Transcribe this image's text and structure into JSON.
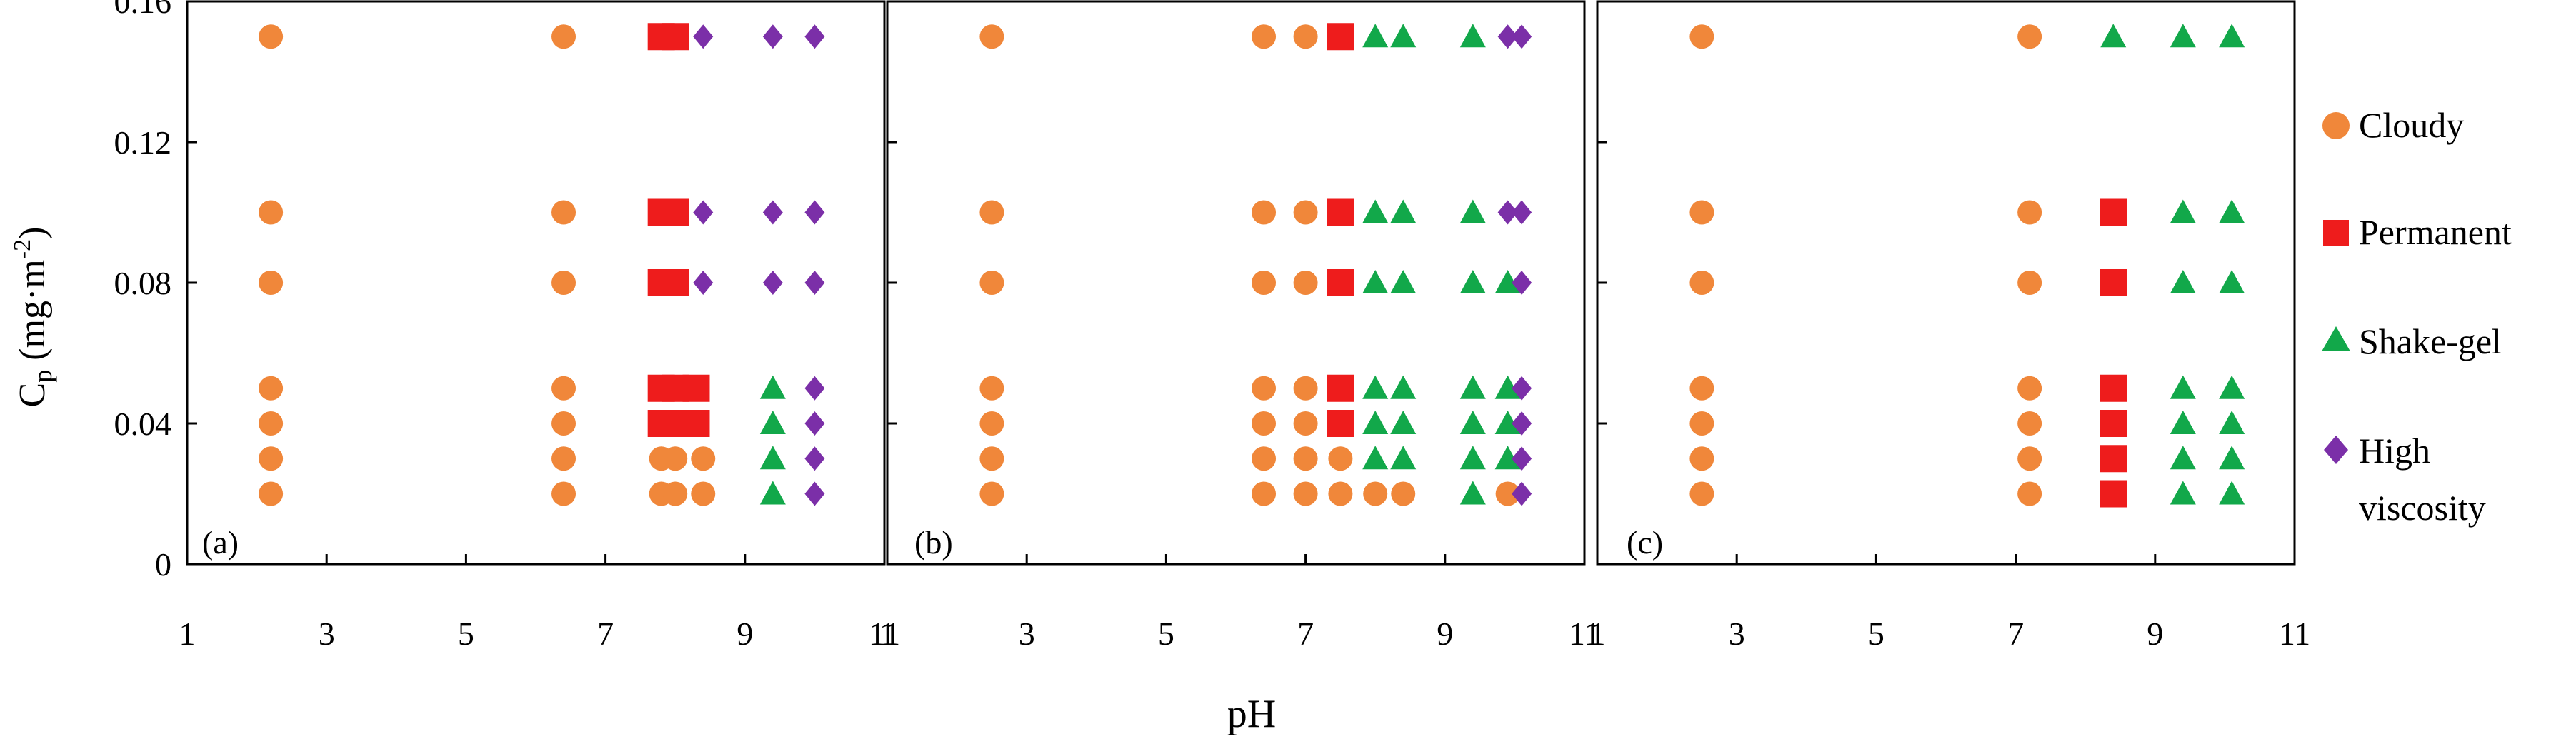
{
  "chart_data": {
    "type": "scatter",
    "x_axis": {
      "label": "pH",
      "range": [
        1,
        11
      ],
      "ticks": [
        1,
        3,
        5,
        7,
        9,
        11
      ],
      "tick_labels": [
        "1",
        "3",
        "5",
        "7",
        "9",
        "11"
      ]
    },
    "y_axis": {
      "label_main": "C",
      "label_sub": "p",
      "label_rest": " (mg·m",
      "label_sup": "-2",
      "label_end": ")",
      "range": [
        0,
        0.16
      ],
      "ticks": [
        0,
        0.04,
        0.08,
        0.12,
        0.16
      ],
      "tick_labels": [
        "0",
        "0.04",
        "0.08",
        "0.12",
        "0.16"
      ]
    },
    "legend": [
      {
        "key": "cloudy",
        "label": "Cloudy",
        "marker": "circle",
        "color": "#F0873A"
      },
      {
        "key": "permanent",
        "label": "Permanent",
        "marker": "square",
        "color": "#EE1C1C"
      },
      {
        "key": "shake",
        "label": "Shake-gel",
        "marker": "triangle",
        "color": "#12A84A"
      },
      {
        "key": "high",
        "label1": "High",
        "label2": "viscosity",
        "marker": "diamond",
        "color": "#7B2FA8"
      }
    ],
    "panels": [
      {
        "label": "(a)",
        "series": [
          {
            "name": "Cloudy",
            "points": [
              [
                2.2,
                0.02
              ],
              [
                2.2,
                0.03
              ],
              [
                2.2,
                0.04
              ],
              [
                2.2,
                0.05
              ],
              [
                2.2,
                0.08
              ],
              [
                2.2,
                0.1
              ],
              [
                2.2,
                0.15
              ],
              [
                6.4,
                0.02
              ],
              [
                6.4,
                0.03
              ],
              [
                6.4,
                0.04
              ],
              [
                6.4,
                0.05
              ],
              [
                6.4,
                0.08
              ],
              [
                6.4,
                0.1
              ],
              [
                6.4,
                0.15
              ],
              [
                7.8,
                0.02
              ],
              [
                8.0,
                0.02
              ],
              [
                8.4,
                0.02
              ],
              [
                7.8,
                0.03
              ],
              [
                8.0,
                0.03
              ],
              [
                8.4,
                0.03
              ]
            ]
          },
          {
            "name": "Permanent",
            "points": [
              [
                7.8,
                0.04
              ],
              [
                8.0,
                0.04
              ],
              [
                8.3,
                0.04
              ],
              [
                7.8,
                0.05
              ],
              [
                8.0,
                0.05
              ],
              [
                8.3,
                0.05
              ],
              [
                7.8,
                0.08
              ],
              [
                8.0,
                0.08
              ],
              [
                7.8,
                0.1
              ],
              [
                8.0,
                0.1
              ],
              [
                7.8,
                0.15
              ],
              [
                8.0,
                0.15
              ]
            ]
          },
          {
            "name": "Shake-gel",
            "points": [
              [
                9.4,
                0.02
              ],
              [
                9.4,
                0.03
              ],
              [
                9.4,
                0.04
              ],
              [
                9.4,
                0.05
              ]
            ]
          },
          {
            "name": "High viscosity",
            "points": [
              [
                10.0,
                0.02
              ],
              [
                10.0,
                0.03
              ],
              [
                10.0,
                0.04
              ],
              [
                10.0,
                0.05
              ],
              [
                8.4,
                0.08
              ],
              [
                9.4,
                0.08
              ],
              [
                10.0,
                0.08
              ],
              [
                8.4,
                0.1
              ],
              [
                9.4,
                0.1
              ],
              [
                10.0,
                0.1
              ],
              [
                8.4,
                0.15
              ],
              [
                9.4,
                0.15
              ],
              [
                10.0,
                0.15
              ]
            ]
          }
        ]
      },
      {
        "label": "(b)",
        "series": [
          {
            "name": "Cloudy",
            "points": [
              [
                2.5,
                0.02
              ],
              [
                2.5,
                0.03
              ],
              [
                2.5,
                0.04
              ],
              [
                2.5,
                0.05
              ],
              [
                2.5,
                0.08
              ],
              [
                2.5,
                0.1
              ],
              [
                2.5,
                0.15
              ],
              [
                6.4,
                0.02
              ],
              [
                6.4,
                0.03
              ],
              [
                6.4,
                0.04
              ],
              [
                6.4,
                0.05
              ],
              [
                6.4,
                0.08
              ],
              [
                6.4,
                0.1
              ],
              [
                6.4,
                0.15
              ],
              [
                7.0,
                0.02
              ],
              [
                7.0,
                0.03
              ],
              [
                7.0,
                0.04
              ],
              [
                7.0,
                0.05
              ],
              [
                7.0,
                0.08
              ],
              [
                7.0,
                0.1
              ],
              [
                7.0,
                0.15
              ],
              [
                7.5,
                0.02
              ],
              [
                7.5,
                0.03
              ],
              [
                8.0,
                0.02
              ],
              [
                8.4,
                0.02
              ],
              [
                9.9,
                0.02
              ]
            ]
          },
          {
            "name": "Permanent",
            "points": [
              [
                7.5,
                0.04
              ],
              [
                7.5,
                0.05
              ],
              [
                7.5,
                0.08
              ],
              [
                7.5,
                0.1
              ],
              [
                7.5,
                0.15
              ]
            ]
          },
          {
            "name": "Shake-gel",
            "points": [
              [
                8.0,
                0.03
              ],
              [
                8.4,
                0.03
              ],
              [
                9.4,
                0.03
              ],
              [
                9.9,
                0.03
              ],
              [
                8.0,
                0.04
              ],
              [
                8.4,
                0.04
              ],
              [
                9.4,
                0.04
              ],
              [
                9.9,
                0.04
              ],
              [
                8.0,
                0.05
              ],
              [
                8.4,
                0.05
              ],
              [
                9.4,
                0.05
              ],
              [
                9.9,
                0.05
              ],
              [
                8.0,
                0.08
              ],
              [
                8.4,
                0.08
              ],
              [
                9.4,
                0.08
              ],
              [
                9.9,
                0.08
              ],
              [
                8.0,
                0.1
              ],
              [
                8.4,
                0.1
              ],
              [
                9.4,
                0.1
              ],
              [
                8.0,
                0.15
              ],
              [
                8.4,
                0.15
              ],
              [
                9.4,
                0.15
              ],
              [
                9.4,
                0.02
              ]
            ]
          },
          {
            "name": "High viscosity",
            "points": [
              [
                10.1,
                0.02
              ],
              [
                10.1,
                0.03
              ],
              [
                10.1,
                0.04
              ],
              [
                10.1,
                0.05
              ],
              [
                10.1,
                0.08
              ],
              [
                9.9,
                0.1
              ],
              [
                10.1,
                0.1
              ],
              [
                9.9,
                0.15
              ],
              [
                10.1,
                0.15
              ]
            ]
          }
        ]
      },
      {
        "label": "(c)",
        "series": [
          {
            "name": "Cloudy",
            "points": [
              [
                2.5,
                0.02
              ],
              [
                2.5,
                0.03
              ],
              [
                2.5,
                0.04
              ],
              [
                2.5,
                0.05
              ],
              [
                2.5,
                0.08
              ],
              [
                2.5,
                0.1
              ],
              [
                2.5,
                0.15
              ],
              [
                7.2,
                0.02
              ],
              [
                7.2,
                0.03
              ],
              [
                7.2,
                0.04
              ],
              [
                7.2,
                0.05
              ],
              [
                7.2,
                0.08
              ],
              [
                7.2,
                0.1
              ],
              [
                7.2,
                0.15
              ]
            ]
          },
          {
            "name": "Permanent",
            "points": [
              [
                8.4,
                0.02
              ],
              [
                8.4,
                0.03
              ],
              [
                8.4,
                0.04
              ],
              [
                8.4,
                0.05
              ],
              [
                8.4,
                0.08
              ],
              [
                8.4,
                0.1
              ]
            ]
          },
          {
            "name": "Shake-gel",
            "points": [
              [
                9.4,
                0.02
              ],
              [
                10.1,
                0.02
              ],
              [
                9.4,
                0.03
              ],
              [
                10.1,
                0.03
              ],
              [
                9.4,
                0.04
              ],
              [
                10.1,
                0.04
              ],
              [
                9.4,
                0.05
              ],
              [
                10.1,
                0.05
              ],
              [
                9.4,
                0.08
              ],
              [
                10.1,
                0.08
              ],
              [
                9.4,
                0.1
              ],
              [
                10.1,
                0.1
              ],
              [
                8.4,
                0.15
              ],
              [
                9.4,
                0.15
              ],
              [
                10.1,
                0.15
              ]
            ]
          },
          {
            "name": "High viscosity",
            "points": []
          }
        ]
      }
    ]
  }
}
